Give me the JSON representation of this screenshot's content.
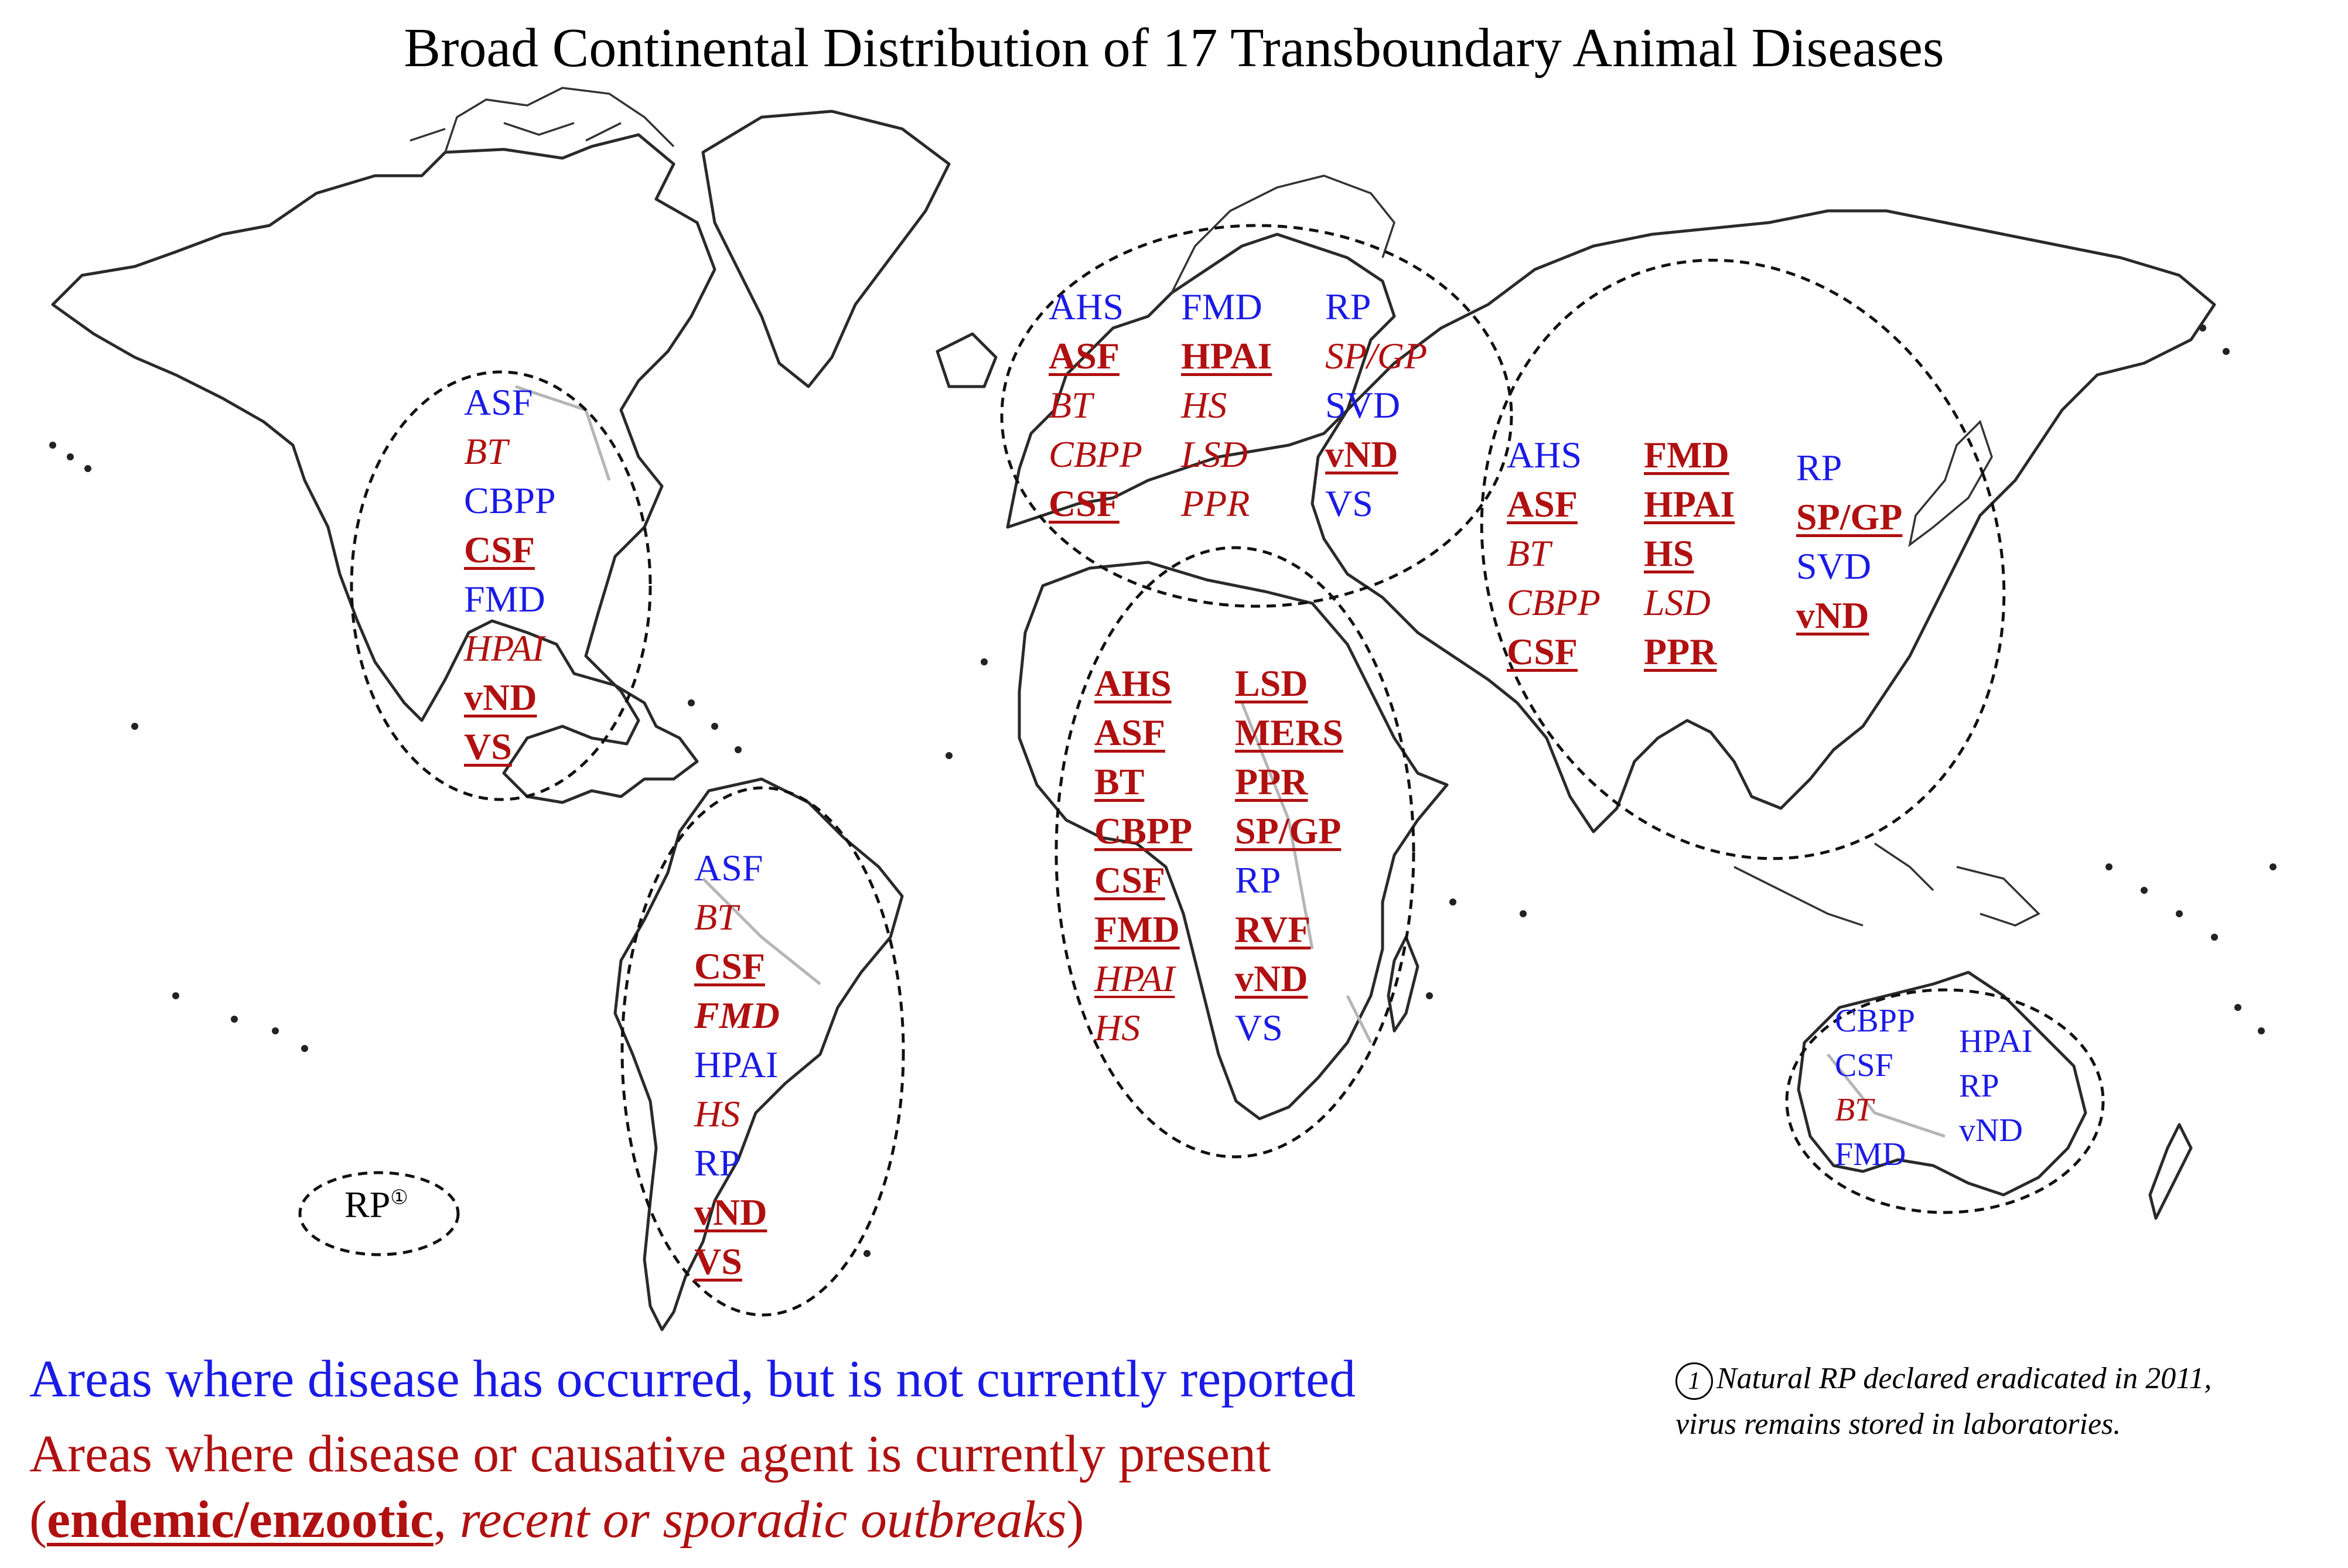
{
  "title": "Broad Continental Distribution of 17 Transboundary Animal Diseases",
  "colors": {
    "not_currently_reported": "#1a1ae6",
    "currently_present": "#b01010"
  },
  "status_legend": {
    "blue": "occurred, not currently reported",
    "red_bold_underline": "endemic/enzootic",
    "red_italic": "recent or sporadic outbreaks"
  },
  "regions": {
    "north_america": {
      "columns": [
        [
          {
            "text": "ASF",
            "status": "blue"
          },
          {
            "text": "BT",
            "status": "red"
          },
          {
            "text": "CBPP",
            "status": "blue"
          },
          {
            "text": "CSF",
            "status": "endemic"
          },
          {
            "text": "FMD",
            "status": "blue"
          },
          {
            "text": "HPAI",
            "status": "red"
          },
          {
            "text": "vND",
            "status": "endemic"
          },
          {
            "text": "VS",
            "status": "endemic"
          }
        ]
      ]
    },
    "south_america": {
      "columns": [
        [
          {
            "text": "ASF",
            "status": "blue"
          },
          {
            "text": "BT",
            "status": "red"
          },
          {
            "text": "CSF",
            "status": "endemic"
          },
          {
            "text": "FMD",
            "status": "endemic-italic"
          },
          {
            "text": "HPAI",
            "status": "blue"
          },
          {
            "text": "HS",
            "status": "red"
          },
          {
            "text": "RP",
            "status": "blue"
          },
          {
            "text": "vND",
            "status": "endemic"
          },
          {
            "text": "VS",
            "status": "endemic"
          }
        ]
      ]
    },
    "europe": {
      "columns": [
        [
          {
            "text": "AHS",
            "status": "blue"
          },
          {
            "text": "ASF",
            "status": "endemic"
          },
          {
            "text": "BT",
            "status": "red"
          },
          {
            "text": "CBPP",
            "status": "red"
          },
          {
            "text": "CSF",
            "status": "endemic"
          }
        ],
        [
          {
            "text": "FMD",
            "status": "blue"
          },
          {
            "text": "HPAI",
            "status": "endemic"
          },
          {
            "text": "HS",
            "status": "red"
          },
          {
            "text": "LSD",
            "status": "red"
          },
          {
            "text": "PPR",
            "status": "red"
          }
        ],
        [
          {
            "text": "RP",
            "status": "blue"
          },
          {
            "text": "SP/GP",
            "status": "red"
          },
          {
            "text": "SVD",
            "status": "blue"
          },
          {
            "text": "vND",
            "status": "endemic"
          },
          {
            "text": "VS",
            "status": "blue"
          }
        ]
      ]
    },
    "africa": {
      "columns": [
        [
          {
            "text": "AHS",
            "status": "endemic"
          },
          {
            "text": "ASF",
            "status": "endemic"
          },
          {
            "text": "BT",
            "status": "endemic"
          },
          {
            "text": "CBPP",
            "status": "endemic"
          },
          {
            "text": "CSF",
            "status": "endemic"
          },
          {
            "text": "FMD",
            "status": "endemic"
          },
          {
            "text": "HPAI",
            "status": "recent-under"
          },
          {
            "text": "HS",
            "status": "red"
          }
        ],
        [
          {
            "text": "LSD",
            "status": "endemic"
          },
          {
            "text": "MERS",
            "status": "endemic"
          },
          {
            "text": "PPR",
            "status": "endemic"
          },
          {
            "text": "SP/GP",
            "status": "endemic"
          },
          {
            "text": "RP",
            "status": "blue"
          },
          {
            "text": "RVF",
            "status": "endemic"
          },
          {
            "text": "vND",
            "status": "endemic"
          },
          {
            "text": "VS",
            "status": "blue"
          }
        ]
      ]
    },
    "asia": {
      "columns": [
        [
          {
            "text": "AHS",
            "status": "blue"
          },
          {
            "text": "ASF",
            "status": "endemic"
          },
          {
            "text": "BT",
            "status": "red"
          },
          {
            "text": "CBPP",
            "status": "red"
          },
          {
            "text": "CSF",
            "status": "endemic"
          }
        ],
        [
          {
            "text": "FMD",
            "status": "endemic"
          },
          {
            "text": "HPAI",
            "status": "endemic"
          },
          {
            "text": "HS",
            "status": "endemic"
          },
          {
            "text": "LSD",
            "status": "red"
          },
          {
            "text": "PPR",
            "status": "endemic"
          }
        ],
        [
          {
            "text": "RP",
            "status": "blue"
          },
          {
            "text": "SP/GP",
            "status": "endemic"
          },
          {
            "text": "SVD",
            "status": "blue"
          },
          {
            "text": "vND",
            "status": "endemic"
          }
        ]
      ]
    },
    "oceania": {
      "columns": [
        [
          {
            "text": "CBPP",
            "status": "blue"
          },
          {
            "text": "CSF",
            "status": "blue"
          },
          {
            "text": "BT",
            "status": "red"
          },
          {
            "text": "FMD",
            "status": "blue"
          }
        ],
        [
          {
            "text": "HPAI",
            "status": "blue"
          },
          {
            "text": "RP",
            "status": "blue"
          },
          {
            "text": "vND",
            "status": "blue"
          }
        ]
      ]
    }
  },
  "pacific_label": {
    "text": "RP",
    "marker": "①"
  },
  "legend": {
    "line1": "Areas where disease has occurred, but is not currently reported",
    "line2": "Areas where disease or causative agent is currently present",
    "line3_open": "(",
    "line3_endemic": "endemic/enzootic",
    "line3_sep": ", ",
    "line3_italic": "recent or sporadic outbreaks",
    "line3_close": ")"
  },
  "footnote": {
    "marker": "1",
    "line1": "Natural RP declared eradicated in 2011,",
    "line2": "virus remains stored in laboratories."
  }
}
